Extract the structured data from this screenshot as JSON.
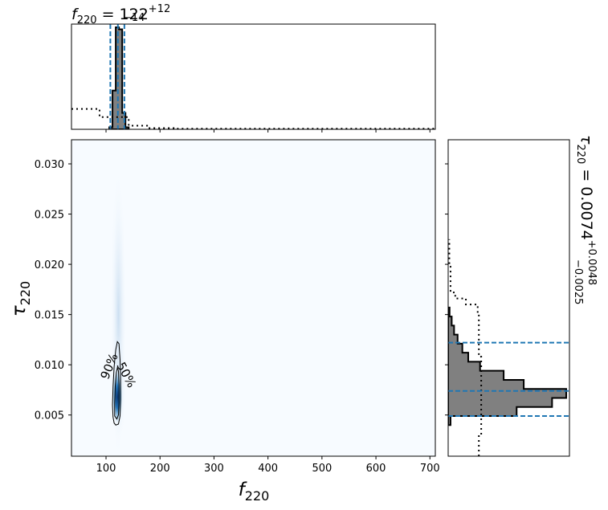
{
  "chart_data": {
    "type": "corner",
    "x_param": {
      "label_base": "f",
      "label_sub": "220",
      "median": 122,
      "err_plus": 12,
      "err_minus": 14,
      "title_value": "122",
      "title_plus": "+12",
      "title_minus": "−14",
      "range": [
        36,
        710
      ],
      "ticks": [
        100,
        200,
        300,
        400,
        500,
        600,
        700
      ],
      "tick_labels": [
        "100",
        "200",
        "300",
        "400",
        "500",
        "600",
        "700"
      ],
      "credible_lines": [
        108,
        122,
        134
      ]
    },
    "y_param": {
      "label_base": "τ",
      "label_sub": "220",
      "median": 0.0074,
      "err_plus": 0.0048,
      "err_minus": 0.0025,
      "title_value": "0.0074",
      "title_plus": "+0.0048",
      "title_minus": "−0.0025",
      "range": [
        0.0009,
        0.0324
      ],
      "ticks": [
        0.005,
        0.01,
        0.015,
        0.02,
        0.025,
        0.03
      ],
      "tick_labels": [
        "0.005",
        "0.010",
        "0.015",
        "0.020",
        "0.025",
        "0.030"
      ],
      "credible_lines": [
        0.0049,
        0.0074,
        0.0122
      ]
    },
    "top_histogram": {
      "bins": [
        {
          "x0": 106,
          "x1": 112,
          "height": 0.02
        },
        {
          "x0": 112,
          "x1": 118,
          "height": 0.38
        },
        {
          "x0": 118,
          "x1": 124,
          "height": 1.0
        },
        {
          "x0": 124,
          "x1": 130,
          "height": 0.98
        },
        {
          "x0": 130,
          "x1": 136,
          "height": 0.16
        },
        {
          "x0": 136,
          "x1": 142,
          "height": 0.02
        }
      ],
      "prior_steps": [
        {
          "x0": 36,
          "x1": 88,
          "height": 0.2
        },
        {
          "x0": 88,
          "x1": 142,
          "height": 0.12
        },
        {
          "x0": 142,
          "x1": 176,
          "height": 0.035
        },
        {
          "x0": 176,
          "x1": 230,
          "height": 0.012
        },
        {
          "x0": 230,
          "x1": 710,
          "height": 0.006
        }
      ]
    },
    "right_histogram": {
      "bins": [
        {
          "y0": 0.004,
          "y1": 0.0049,
          "width": 0.02
        },
        {
          "y0": 0.0049,
          "y1": 0.0058,
          "width": 0.58
        },
        {
          "y0": 0.0058,
          "y1": 0.0067,
          "width": 0.88
        },
        {
          "y0": 0.0067,
          "y1": 0.0076,
          "width": 1.0
        },
        {
          "y0": 0.0076,
          "y1": 0.0085,
          "width": 0.64
        },
        {
          "y0": 0.0085,
          "y1": 0.0094,
          "width": 0.47
        },
        {
          "y0": 0.0094,
          "y1": 0.0103,
          "width": 0.27
        },
        {
          "y0": 0.0103,
          "y1": 0.0112,
          "width": 0.17
        },
        {
          "y0": 0.0112,
          "y1": 0.0121,
          "width": 0.12
        },
        {
          "y0": 0.0121,
          "y1": 0.013,
          "width": 0.08
        },
        {
          "y0": 0.013,
          "y1": 0.0139,
          "width": 0.05
        },
        {
          "y0": 0.0139,
          "y1": 0.0148,
          "width": 0.03
        },
        {
          "y0": 0.0148,
          "y1": 0.0157,
          "width": 0.012
        }
      ],
      "prior_steps": [
        {
          "y0": 0.0009,
          "y1": 0.003,
          "width": 0.26
        },
        {
          "y0": 0.003,
          "y1": 0.0108,
          "width": 0.28
        },
        {
          "y0": 0.0108,
          "y1": 0.015,
          "width": 0.26
        },
        {
          "y0": 0.015,
          "y1": 0.016,
          "width": 0.25
        },
        {
          "y0": 0.016,
          "y1": 0.0166,
          "width": 0.15
        },
        {
          "y0": 0.0166,
          "y1": 0.0172,
          "width": 0.06
        },
        {
          "y0": 0.0172,
          "y1": 0.02,
          "width": 0.02
        },
        {
          "y0": 0.02,
          "y1": 0.0225,
          "width": 0.01
        }
      ]
    },
    "contours": [
      {
        "level_label": "90%",
        "points": [
          [
            113,
            0.0048
          ],
          [
            112,
            0.006
          ],
          [
            113,
            0.0078
          ],
          [
            115,
            0.0098
          ],
          [
            118,
            0.0115
          ],
          [
            121,
            0.0123
          ],
          [
            124,
            0.0121
          ],
          [
            126,
            0.0105
          ],
          [
            127,
            0.0085
          ],
          [
            127,
            0.0065
          ],
          [
            126,
            0.0049
          ],
          [
            123,
            0.0041
          ],
          [
            118,
            0.004
          ],
          [
            115,
            0.0042
          ]
        ]
      },
      {
        "level_label": "50%",
        "points": [
          [
            116,
            0.0049
          ],
          [
            116,
            0.0062
          ],
          [
            117,
            0.0078
          ],
          [
            119,
            0.0092
          ],
          [
            121,
            0.0097
          ],
          [
            123,
            0.0094
          ],
          [
            124,
            0.008
          ],
          [
            124,
            0.0062
          ],
          [
            123,
            0.005
          ],
          [
            120,
            0.0046
          ]
        ]
      }
    ],
    "colors": {
      "histogram_fill": "#808080",
      "histogram_edge": "#000000",
      "credible_line": "#1f77b4",
      "density_background": "#f7fbff",
      "density_peak": "#08306b"
    }
  }
}
